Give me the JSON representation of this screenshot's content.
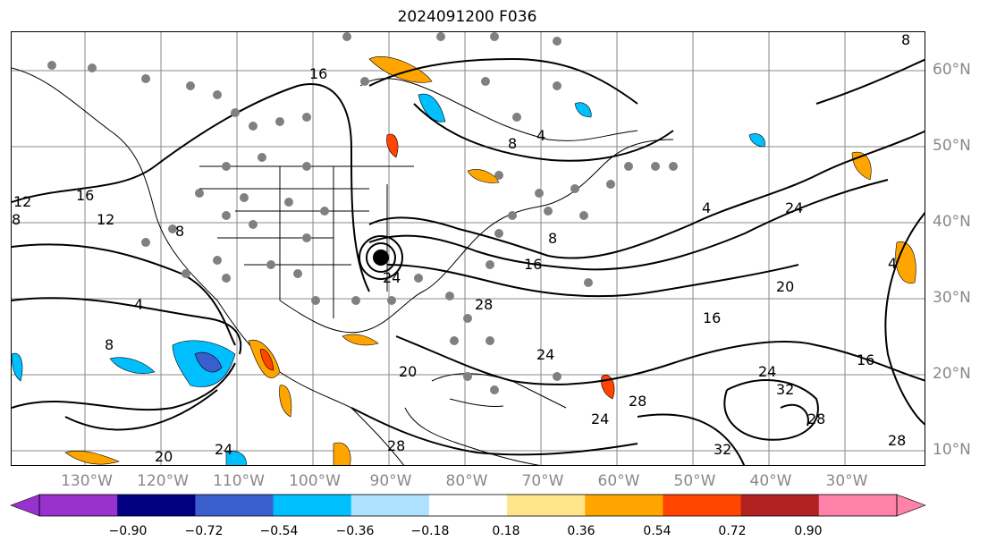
{
  "title": "2024091200 F036",
  "longitude_labels": [
    "130°W",
    "120°W",
    "110°W",
    "100°W",
    "90°W",
    "80°W",
    "70°W",
    "60°W",
    "50°W",
    "40°W",
    "30°W"
  ],
  "latitude_labels": [
    "60°N",
    "50°N",
    "40°N",
    "30°N",
    "20°N",
    "10°N"
  ],
  "colorbar": {
    "ticks": [
      "−0.90",
      "−0.72",
      "−0.54",
      "−0.36",
      "−0.18",
      "0.18",
      "0.36",
      "0.54",
      "0.72",
      "0.90"
    ],
    "colors": [
      "#9932cc",
      "#000080",
      "#3a5fcd",
      "#00bfff",
      "#b0e2ff",
      "#ffffff",
      "#ffe68a",
      "#ffa500",
      "#ff4500",
      "#b22222",
      "#ff82ab"
    ],
    "extend": "both"
  },
  "contour_labels": [
    "16",
    "8",
    "4",
    "8",
    "12",
    "8",
    "4",
    "8",
    "16",
    "24",
    "4",
    "8",
    "16",
    "24",
    "28",
    "20",
    "24",
    "28",
    "32",
    "24",
    "28",
    "16",
    "20",
    "28",
    "12",
    "24",
    "32",
    "28",
    "24",
    "8",
    "4",
    "16",
    "20"
  ],
  "station_marker_color": "#808080",
  "map_extent": {
    "lon_min": -135,
    "lon_max": -15,
    "lat_min": 7,
    "lat_max": 65
  }
}
